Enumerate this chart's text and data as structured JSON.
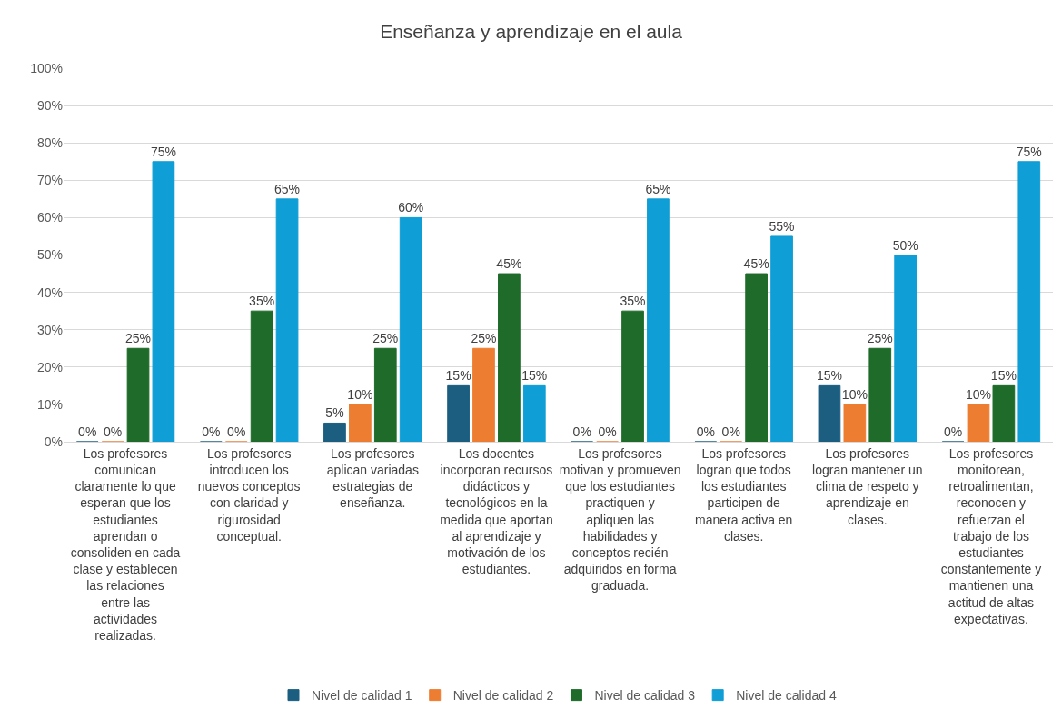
{
  "chart_data": {
    "type": "bar",
    "title": "Enseñanza y aprendizaje en el aula",
    "categories": [
      "Los profesores comunican claramente lo que esperan que los estudiantes aprendan o consoliden en cada clase y establecen las relaciones entre las actividades realizadas.",
      "Los profesores introducen los nuevos conceptos con claridad y rigurosidad conceptual.",
      "Los profesores aplican variadas estrategias de enseñanza.",
      "Los docentes incorporan recursos didácticos y tecnológicos en la medida que aportan al aprendizaje y motivación de los estudiantes.",
      "Los profesores motivan y promueven que los estudiantes practiquen y apliquen las habilidades y conceptos recién adquiridos en forma graduada.",
      "Los profesores logran que todos los estudiantes participen de manera activa en clases.",
      "Los profesores logran mantener un clima de respeto y aprendizaje en clases.",
      "Los profesores monitorean, retroalimentan, reconocen y refuerzan el trabajo de los estudiantes constantemente y mantienen una actitud de altas expectativas."
    ],
    "series": [
      {
        "name": "Nivel de calidad 1",
        "color": "#1b5e80",
        "values": [
          0,
          0,
          5,
          15,
          0,
          0,
          15,
          0
        ],
        "value_labels": [
          "0%",
          "0%",
          "5%",
          "15%",
          "0%",
          "0%",
          "15%",
          "0%"
        ]
      },
      {
        "name": "Nivel de calidad 2",
        "color": "#ed7d31",
        "values": [
          0,
          0,
          10,
          25,
          0,
          0,
          10,
          10
        ],
        "value_labels": [
          "0%",
          "0%",
          "10%",
          "25%",
          "0%",
          "0%",
          "10%",
          "10%"
        ]
      },
      {
        "name": "Nivel de calidad 3",
        "color": "#1e6b2a",
        "values": [
          25,
          35,
          25,
          45,
          35,
          45,
          25,
          15
        ],
        "value_labels": [
          "25%",
          "35%",
          "25%",
          "45%",
          "35%",
          "45%",
          "25%",
          "15%"
        ]
      },
      {
        "name": "Nivel de calidad 4",
        "color": "#0f9ed5",
        "values": [
          75,
          65,
          60,
          15,
          65,
          55,
          50,
          75
        ],
        "value_labels": [
          "75%",
          "65%",
          "60%",
          "15%",
          "65%",
          "55%",
          "50%",
          "75%"
        ]
      }
    ],
    "ylim": [
      0,
      100
    ],
    "yticks": [
      {
        "value": 0,
        "label": "0%"
      },
      {
        "value": 10,
        "label": "10%"
      },
      {
        "value": 20,
        "label": "20%"
      },
      {
        "value": 30,
        "label": "30%"
      },
      {
        "value": 40,
        "label": "40%"
      },
      {
        "value": 50,
        "label": "50%"
      },
      {
        "value": 60,
        "label": "60%"
      },
      {
        "value": 70,
        "label": "70%"
      },
      {
        "value": 80,
        "label": "80%"
      },
      {
        "value": 90,
        "label": "90%"
      },
      {
        "value": 100,
        "label": "100%"
      }
    ],
    "grid": "y",
    "legend": "bottom"
  }
}
